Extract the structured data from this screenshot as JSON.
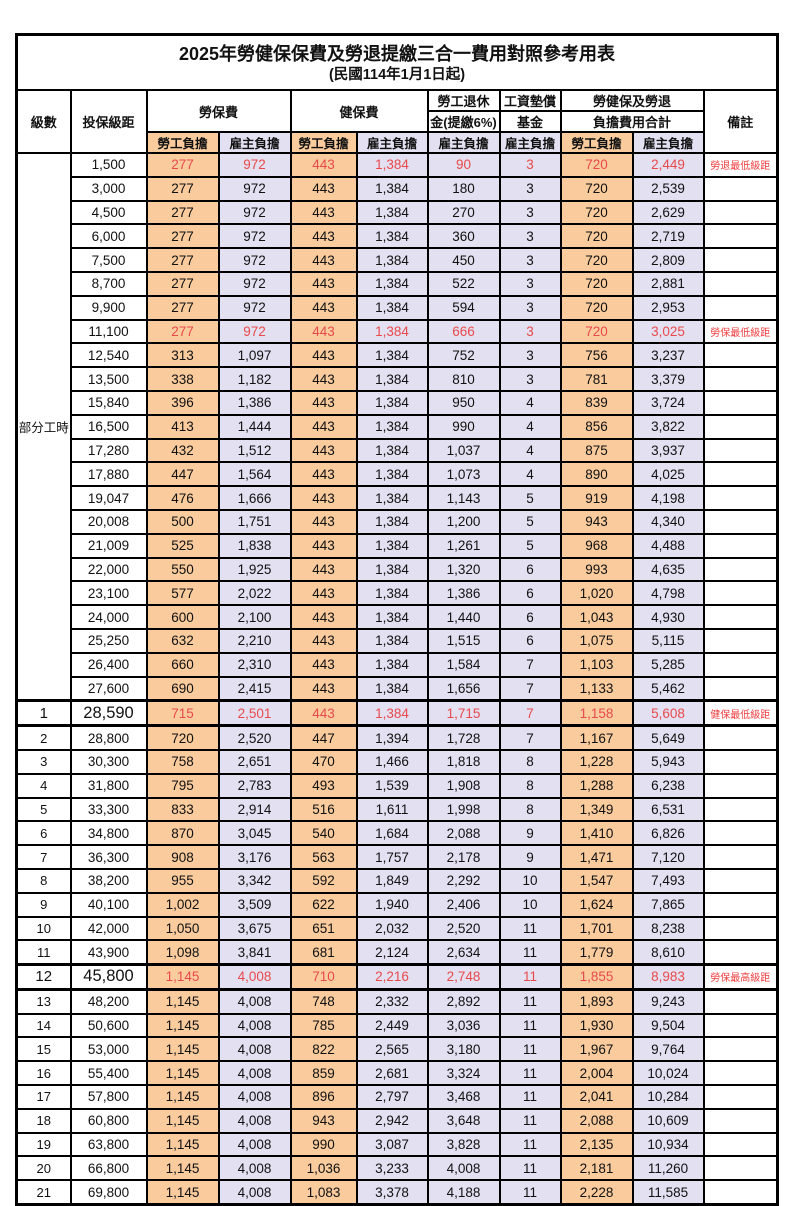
{
  "title": "2025年勞健保保費及勞退提繳三合一費用對照參考用表",
  "subtitle": "(民國114年1月1日起)",
  "colors": {
    "employee_bg": "#F9CB9D",
    "employer_bg": "#E3E0F1",
    "highlight_text": "#E84A4C",
    "remark_text": "#EE3B3D",
    "border": "#000000"
  },
  "header": {
    "level": "級數",
    "bracket": "投保級距",
    "labor_insurance": "勞保費",
    "health_insurance": "健保費",
    "pension_line1": "勞工退休",
    "pension_line2": "金(提繳6%)",
    "wage_fund_line1": "工資墊償",
    "wage_fund_line2": "基金",
    "total_line1": "勞健保及勞退",
    "total_line2": "負擔費用合計",
    "remark": "備註",
    "employee": "勞工負擔",
    "employer": "雇主負擔"
  },
  "group_label": "部分工時",
  "column_bg_pattern": [
    "emp",
    "er",
    "emp",
    "er",
    "er",
    "er",
    "emp",
    "er"
  ],
  "rows": [
    {
      "level": "",
      "bracket": "1,500",
      "values": [
        "277",
        "972",
        "443",
        "1,384",
        "90",
        "3",
        "720",
        "2,449"
      ],
      "remark": "勞退最低級距",
      "red": true,
      "em": false
    },
    {
      "level": "",
      "bracket": "3,000",
      "values": [
        "277",
        "972",
        "443",
        "1,384",
        "180",
        "3",
        "720",
        "2,539"
      ],
      "remark": "",
      "red": false,
      "em": false
    },
    {
      "level": "",
      "bracket": "4,500",
      "values": [
        "277",
        "972",
        "443",
        "1,384",
        "270",
        "3",
        "720",
        "2,629"
      ],
      "remark": "",
      "red": false,
      "em": false
    },
    {
      "level": "",
      "bracket": "6,000",
      "values": [
        "277",
        "972",
        "443",
        "1,384",
        "360",
        "3",
        "720",
        "2,719"
      ],
      "remark": "",
      "red": false,
      "em": false
    },
    {
      "level": "",
      "bracket": "7,500",
      "values": [
        "277",
        "972",
        "443",
        "1,384",
        "450",
        "3",
        "720",
        "2,809"
      ],
      "remark": "",
      "red": false,
      "em": false
    },
    {
      "level": "",
      "bracket": "8,700",
      "values": [
        "277",
        "972",
        "443",
        "1,384",
        "522",
        "3",
        "720",
        "2,881"
      ],
      "remark": "",
      "red": false,
      "em": false
    },
    {
      "level": "",
      "bracket": "9,900",
      "values": [
        "277",
        "972",
        "443",
        "1,384",
        "594",
        "3",
        "720",
        "2,953"
      ],
      "remark": "",
      "red": false,
      "em": false
    },
    {
      "level": "",
      "bracket": "11,100",
      "values": [
        "277",
        "972",
        "443",
        "1,384",
        "666",
        "3",
        "720",
        "3,025"
      ],
      "remark": "勞保最低級距",
      "red": true,
      "em": false
    },
    {
      "level": "",
      "bracket": "12,540",
      "values": [
        "313",
        "1,097",
        "443",
        "1,384",
        "752",
        "3",
        "756",
        "3,237"
      ],
      "remark": "",
      "red": false,
      "em": false
    },
    {
      "level": "",
      "bracket": "13,500",
      "values": [
        "338",
        "1,182",
        "443",
        "1,384",
        "810",
        "3",
        "781",
        "3,379"
      ],
      "remark": "",
      "red": false,
      "em": false
    },
    {
      "level": "",
      "bracket": "15,840",
      "values": [
        "396",
        "1,386",
        "443",
        "1,384",
        "950",
        "4",
        "839",
        "3,724"
      ],
      "remark": "",
      "red": false,
      "em": false
    },
    {
      "level": "",
      "bracket": "16,500",
      "values": [
        "413",
        "1,444",
        "443",
        "1,384",
        "990",
        "4",
        "856",
        "3,822"
      ],
      "remark": "",
      "red": false,
      "em": false
    },
    {
      "level": "",
      "bracket": "17,280",
      "values": [
        "432",
        "1,512",
        "443",
        "1,384",
        "1,037",
        "4",
        "875",
        "3,937"
      ],
      "remark": "",
      "red": false,
      "em": false
    },
    {
      "level": "",
      "bracket": "17,880",
      "values": [
        "447",
        "1,564",
        "443",
        "1,384",
        "1,073",
        "4",
        "890",
        "4,025"
      ],
      "remark": "",
      "red": false,
      "em": false
    },
    {
      "level": "",
      "bracket": "19,047",
      "values": [
        "476",
        "1,666",
        "443",
        "1,384",
        "1,143",
        "5",
        "919",
        "4,198"
      ],
      "remark": "",
      "red": false,
      "em": false
    },
    {
      "level": "",
      "bracket": "20,008",
      "values": [
        "500",
        "1,751",
        "443",
        "1,384",
        "1,200",
        "5",
        "943",
        "4,340"
      ],
      "remark": "",
      "red": false,
      "em": false
    },
    {
      "level": "",
      "bracket": "21,009",
      "values": [
        "525",
        "1,838",
        "443",
        "1,384",
        "1,261",
        "5",
        "968",
        "4,488"
      ],
      "remark": "",
      "red": false,
      "em": false
    },
    {
      "level": "",
      "bracket": "22,000",
      "values": [
        "550",
        "1,925",
        "443",
        "1,384",
        "1,320",
        "6",
        "993",
        "4,635"
      ],
      "remark": "",
      "red": false,
      "em": false
    },
    {
      "level": "",
      "bracket": "23,100",
      "values": [
        "577",
        "2,022",
        "443",
        "1,384",
        "1,386",
        "6",
        "1,020",
        "4,798"
      ],
      "remark": "",
      "red": false,
      "em": false
    },
    {
      "level": "",
      "bracket": "24,000",
      "values": [
        "600",
        "2,100",
        "443",
        "1,384",
        "1,440",
        "6",
        "1,043",
        "4,930"
      ],
      "remark": "",
      "red": false,
      "em": false
    },
    {
      "level": "",
      "bracket": "25,250",
      "values": [
        "632",
        "2,210",
        "443",
        "1,384",
        "1,515",
        "6",
        "1,075",
        "5,115"
      ],
      "remark": "",
      "red": false,
      "em": false
    },
    {
      "level": "",
      "bracket": "26,400",
      "values": [
        "660",
        "2,310",
        "443",
        "1,384",
        "1,584",
        "7",
        "1,103",
        "5,285"
      ],
      "remark": "",
      "red": false,
      "em": false
    },
    {
      "level": "",
      "bracket": "27,600",
      "values": [
        "690",
        "2,415",
        "443",
        "1,384",
        "1,656",
        "7",
        "1,133",
        "5,462"
      ],
      "remark": "",
      "red": false,
      "em": false
    },
    {
      "level": "1",
      "bracket": "28,590",
      "values": [
        "715",
        "2,501",
        "443",
        "1,384",
        "1,715",
        "7",
        "1,158",
        "5,608"
      ],
      "remark": "健保最低級距",
      "red": true,
      "em": true
    },
    {
      "level": "2",
      "bracket": "28,800",
      "values": [
        "720",
        "2,520",
        "447",
        "1,394",
        "1,728",
        "7",
        "1,167",
        "5,649"
      ],
      "remark": "",
      "red": false,
      "em": false
    },
    {
      "level": "3",
      "bracket": "30,300",
      "values": [
        "758",
        "2,651",
        "470",
        "1,466",
        "1,818",
        "8",
        "1,228",
        "5,943"
      ],
      "remark": "",
      "red": false,
      "em": false
    },
    {
      "level": "4",
      "bracket": "31,800",
      "values": [
        "795",
        "2,783",
        "493",
        "1,539",
        "1,908",
        "8",
        "1,288",
        "6,238"
      ],
      "remark": "",
      "red": false,
      "em": false
    },
    {
      "level": "5",
      "bracket": "33,300",
      "values": [
        "833",
        "2,914",
        "516",
        "1,611",
        "1,998",
        "8",
        "1,349",
        "6,531"
      ],
      "remark": "",
      "red": false,
      "em": false
    },
    {
      "level": "6",
      "bracket": "34,800",
      "values": [
        "870",
        "3,045",
        "540",
        "1,684",
        "2,088",
        "9",
        "1,410",
        "6,826"
      ],
      "remark": "",
      "red": false,
      "em": false
    },
    {
      "level": "7",
      "bracket": "36,300",
      "values": [
        "908",
        "3,176",
        "563",
        "1,757",
        "2,178",
        "9",
        "1,471",
        "7,120"
      ],
      "remark": "",
      "red": false,
      "em": false
    },
    {
      "level": "8",
      "bracket": "38,200",
      "values": [
        "955",
        "3,342",
        "592",
        "1,849",
        "2,292",
        "10",
        "1,547",
        "7,493"
      ],
      "remark": "",
      "red": false,
      "em": false
    },
    {
      "level": "9",
      "bracket": "40,100",
      "values": [
        "1,002",
        "3,509",
        "622",
        "1,940",
        "2,406",
        "10",
        "1,624",
        "7,865"
      ],
      "remark": "",
      "red": false,
      "em": false
    },
    {
      "level": "10",
      "bracket": "42,000",
      "values": [
        "1,050",
        "3,675",
        "651",
        "2,032",
        "2,520",
        "11",
        "1,701",
        "8,238"
      ],
      "remark": "",
      "red": false,
      "em": false
    },
    {
      "level": "11",
      "bracket": "43,900",
      "values": [
        "1,098",
        "3,841",
        "681",
        "2,124",
        "2,634",
        "11",
        "1,779",
        "8,610"
      ],
      "remark": "",
      "red": false,
      "em": false
    },
    {
      "level": "12",
      "bracket": "45,800",
      "values": [
        "1,145",
        "4,008",
        "710",
        "2,216",
        "2,748",
        "11",
        "1,855",
        "8,983"
      ],
      "remark": "勞保最高級距",
      "red": true,
      "em": true
    },
    {
      "level": "13",
      "bracket": "48,200",
      "values": [
        "1,145",
        "4,008",
        "748",
        "2,332",
        "2,892",
        "11",
        "1,893",
        "9,243"
      ],
      "remark": "",
      "red": false,
      "em": false
    },
    {
      "level": "14",
      "bracket": "50,600",
      "values": [
        "1,145",
        "4,008",
        "785",
        "2,449",
        "3,036",
        "11",
        "1,930",
        "9,504"
      ],
      "remark": "",
      "red": false,
      "em": false
    },
    {
      "level": "15",
      "bracket": "53,000",
      "values": [
        "1,145",
        "4,008",
        "822",
        "2,565",
        "3,180",
        "11",
        "1,967",
        "9,764"
      ],
      "remark": "",
      "red": false,
      "em": false
    },
    {
      "level": "16",
      "bracket": "55,400",
      "values": [
        "1,145",
        "4,008",
        "859",
        "2,681",
        "3,324",
        "11",
        "2,004",
        "10,024"
      ],
      "remark": "",
      "red": false,
      "em": false
    },
    {
      "level": "17",
      "bracket": "57,800",
      "values": [
        "1,145",
        "4,008",
        "896",
        "2,797",
        "3,468",
        "11",
        "2,041",
        "10,284"
      ],
      "remark": "",
      "red": false,
      "em": false
    },
    {
      "level": "18",
      "bracket": "60,800",
      "values": [
        "1,145",
        "4,008",
        "943",
        "2,942",
        "3,648",
        "11",
        "2,088",
        "10,609"
      ],
      "remark": "",
      "red": false,
      "em": false
    },
    {
      "level": "19",
      "bracket": "63,800",
      "values": [
        "1,145",
        "4,008",
        "990",
        "3,087",
        "3,828",
        "11",
        "2,135",
        "10,934"
      ],
      "remark": "",
      "red": false,
      "em": false
    },
    {
      "level": "20",
      "bracket": "66,800",
      "values": [
        "1,145",
        "4,008",
        "1,036",
        "3,233",
        "4,008",
        "11",
        "2,181",
        "11,260"
      ],
      "remark": "",
      "red": false,
      "em": false
    },
    {
      "level": "21",
      "bracket": "69,800",
      "values": [
        "1,145",
        "4,008",
        "1,083",
        "3,378",
        "4,188",
        "11",
        "2,228",
        "11,585"
      ],
      "remark": "",
      "red": false,
      "em": false
    }
  ]
}
